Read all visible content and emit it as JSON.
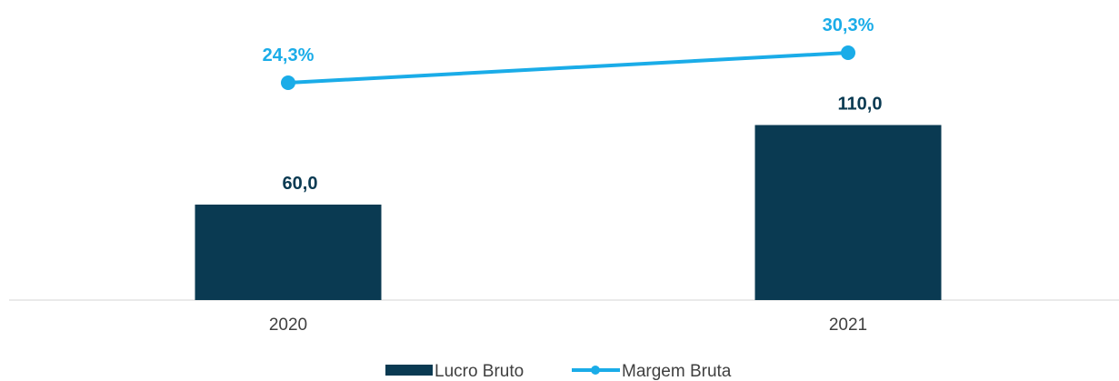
{
  "chart_data": {
    "type": "bar",
    "categories": [
      "2020",
      "2021"
    ],
    "series": [
      {
        "name": "Lucro Bruto",
        "type": "bar",
        "axis": "left",
        "values": [
          60.0,
          110.0
        ],
        "labels": [
          "60,0",
          "110,0"
        ],
        "color": "#0A3A52"
      },
      {
        "name": "Margem Bruta",
        "type": "line",
        "axis": "right",
        "values": [
          24.3,
          30.3
        ],
        "labels": [
          "24,3%",
          "30,3%"
        ],
        "color": "#1AACE8"
      }
    ],
    "title": "",
    "xlabel": "",
    "ylabel": "",
    "y_axis_visible": false,
    "grid": false,
    "legend_position": "bottom"
  }
}
